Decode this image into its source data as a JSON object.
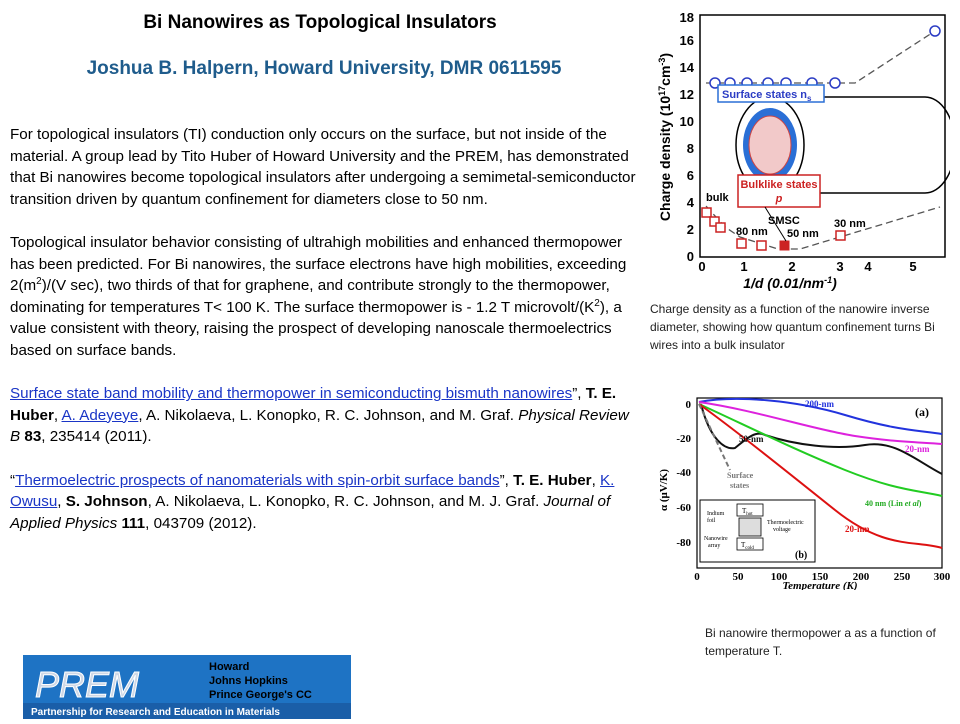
{
  "header": {
    "title": "Bi Nanowires as Topological Insulators",
    "subtitle": "Joshua B. Halpern, Howard University, DMR 0611595"
  },
  "body": {
    "para1": "For topological insulators (TI) conduction only occurs on the surface, but not inside of the material.  A group lead by Tito Huber of Howard University and the PREM, has demonstrated that Bi nanowires become topological insulators after undergoing a semimetal-semiconductor transition driven by quantum confinement for diameters close to 50 nm.",
    "para2_a": "Topological insulator behavior consisting of ultrahigh mobilities and enhanced thermopower has been predicted. For Bi nanowires, the surface electrons have high mobilities,  exceeding 2(m",
    "para2_sup1": "2",
    "para2_b": ")/(V sec), two thirds of that for graphene, and contribute strongly to the thermopower, dominating for temperatures T< 100 K. The surface thermopower is - 1.2 T microvolt/(K",
    "para2_sup2": "2",
    "para2_c": "), a value consistent with theory, raising the prospect of developing nanoscale thermoelectrics based on surface bands.",
    "ref1": {
      "link": "Surface state band mobility and thermopower in semiconducting bismuth nanowires",
      "t1": "”, ",
      "a1": "T. E. Huber",
      "t2": ", ",
      "a2": "A. Adeyeye",
      "t3": ", A. Nikolaeva, L. Konopko, R. C. Johnson, and M.  Graf.  ",
      "journal": "Physical Review B",
      "vol": "83",
      "t4": ", 235414 (2011)."
    },
    "ref2": {
      "open": "“",
      "link": "Thermoelectric prospects of nanomaterials with spin-orbit surface bands",
      "t1": "”, ",
      "a1": "T. E. Huber",
      "t2": ", ",
      "a2": "K. Owusu",
      "t3": ", ",
      "a3": "S. Johnson",
      "t4": ", A. Nikolaeva, L. Konopko, R. C. Johnson, and M. J. Graf.  ",
      "journal": "Journal of Applied Physics",
      "vol": "111",
      "t5": ", 043709 (2012)."
    }
  },
  "figure1": {
    "caption": "Charge density as a function of the nanowire inverse diameter, showing how quantum confinement turns Bi wires into a bulk insulator",
    "ylabel": "Charge density (10",
    "ylabel_sup": "17",
    "ylabel_unit": "cm",
    "ylabel_sup2": "-3",
    "ylabel_close": ")",
    "xlabel": "1/d (0.01/nm",
    "xlabel_sup": "-1",
    "xlabel_close": ")",
    "yticks": [
      "0",
      "2",
      "4",
      "6",
      "8",
      "10",
      "12",
      "14",
      "16",
      "18"
    ],
    "xticks": [
      "0",
      "1",
      "2",
      "3",
      "4",
      "5"
    ],
    "label_surface": "Surface states n",
    "label_surface_sub": "s",
    "label_bulklike": "Bulklike states",
    "label_p": "p",
    "label_bulk": "bulk",
    "label_smsc": "SMSC",
    "label_80": "80 nm",
    "label_50": "50 nm",
    "label_30": "30 nm",
    "colors": {
      "surface": "#2b3cc4",
      "bulk": "#cc2222",
      "box": "#2a6fd6"
    }
  },
  "figure2": {
    "caption": "Bi nanowire thermopower  a as a function of temperature T.",
    "ylabel_alpha": "α (μV/K)",
    "xlabel": "Temperature (K)",
    "yticks": [
      "0",
      "-20",
      "-40",
      "-60",
      "-80"
    ],
    "xticks": [
      "0",
      "50",
      "100",
      "150",
      "200",
      "250",
      "300"
    ],
    "panel_a": "(a)",
    "panel_b": "(b)",
    "label_200": "200-nm",
    "label_20_pink": "20-nm",
    "label_50": "50-nm",
    "label_40": "40 nm (Lin ",
    "label_40_etal": "et al",
    "label_40_close": ")",
    "label_20_red": "20-nm",
    "label_surface": "Surface",
    "label_states": "states",
    "inset_indium": "Indium",
    "inset_foil": "foil",
    "inset_thot": "T",
    "inset_thot_sub": "hot",
    "inset_tcold": "T",
    "inset_tcold_sub": "cold",
    "inset_thermo": "Thermoelectric",
    "inset_voltage": "voltage",
    "inset_nanowire": "Nanowire",
    "inset_array": "array",
    "colors": {
      "blue": "#2233dd",
      "magenta": "#dd22dd",
      "black": "#111111",
      "green": "#22cc22",
      "red": "#dd1111"
    }
  },
  "logo": {
    "wordmark": "PREM",
    "inst1": "Howard",
    "inst2": "Johns Hopkins",
    "inst3": "Prince George's CC",
    "tagline": "Partnership for Research and Education in Materials"
  }
}
